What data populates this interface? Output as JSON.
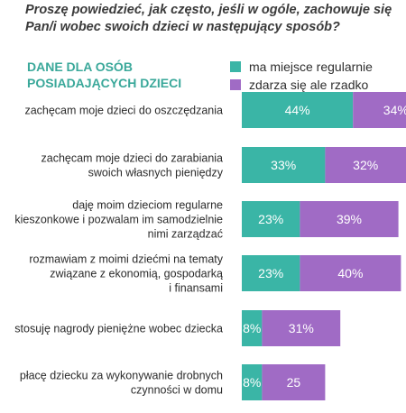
{
  "question": "Proszę powiedzieć, jak często, jeśli w ogóle, zachowuje się Pan/i wobec swoich dzieci w następujący sposób?",
  "colors": {
    "series1": "#3ab5a6",
    "series2": "#a06bc5"
  },
  "chart_data": {
    "type": "bar",
    "orientation": "horizontal",
    "stacked": true,
    "title": "DANE DLA OSÓB POSIADAJĄCYCH DZIECI",
    "legend_position": "top-right",
    "categories": [
      "zachęcam moje dzieci do oszczędzania",
      "zachęcam moje dzieci do zarabiania swoich własnych pieniędzy",
      "daję moim dzieciom regularne kieszonkowe i pozwalam im samodzielnie nimi zarządzać",
      "rozmawiam z moimi dziećmi na tematy związane z ekonomią, gospodarką i finansami",
      "stosuję nagrody pieniężne wobec dziecka",
      "płacę dziecku za wykonywanie drobnych czynności w domu"
    ],
    "category_lines": [
      [
        "zachęcam moje dzieci do oszczędzania"
      ],
      [
        "zachęcam moje dzieci do zarabiania",
        "swoich własnych pieniędzy"
      ],
      [
        "daję moim dzieciom regularne",
        "kieszonkowe i pozwalam im samodzielnie",
        "nimi zarządzać"
      ],
      [
        "rozmawiam z moimi dziećmi na tematy",
        "związane z ekonomią, gospodarką",
        "i finansami"
      ],
      [
        "stosuję nagrody pieniężne wobec dziecka"
      ],
      [
        "płacę dziecku za wykonywanie drobnych",
        "czynności w domu"
      ]
    ],
    "series": [
      {
        "name": "ma miejsce regularnie",
        "values": [
          44,
          33,
          23,
          23,
          8,
          8
        ],
        "labels": [
          "44%",
          "33%",
          "23%",
          "23%",
          "8%",
          "8%"
        ]
      },
      {
        "name": "zdarza się ale rzadko",
        "values": [
          34,
          32,
          39,
          40,
          31,
          25
        ],
        "labels": [
          "34%",
          "32%",
          "39%",
          "40%",
          "31%",
          "25"
        ]
      }
    ]
  }
}
